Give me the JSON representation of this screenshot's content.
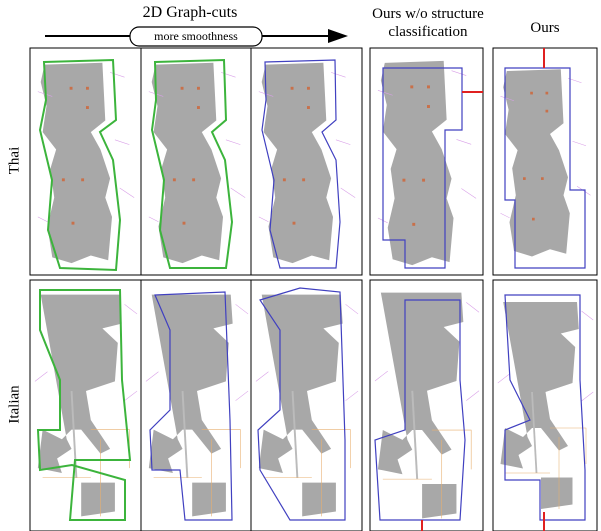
{
  "header": {
    "title": "2D Graph-cuts",
    "arrow_label": "more smoothness",
    "columns": [
      "Ours w/o structure classification",
      "Ours"
    ]
  },
  "rows": [
    "Thai",
    "Italian"
  ]
}
